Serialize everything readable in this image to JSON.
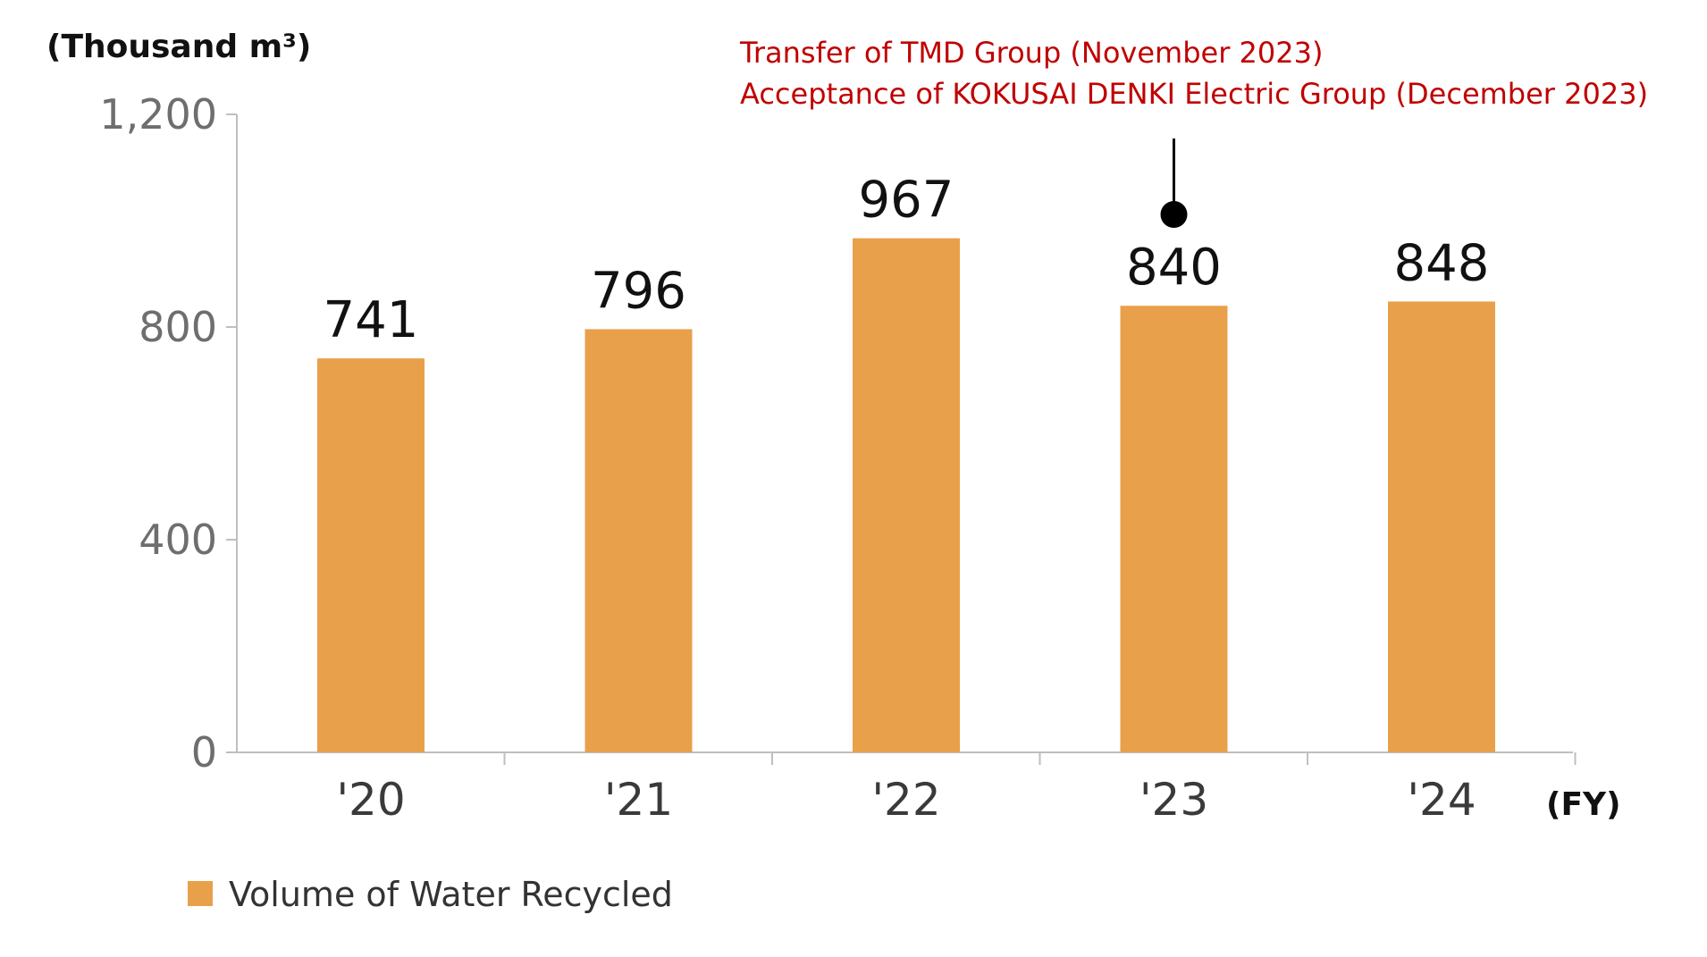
{
  "chart_data": {
    "type": "bar",
    "categories": [
      "'20",
      "'21",
      "'22",
      "'23",
      "'24"
    ],
    "series": [
      {
        "name": "Volume of Water Recycled",
        "values": [
          741,
          796,
          967,
          840,
          848
        ]
      }
    ],
    "ylabel": "(Thousand m³)",
    "xlabel": "(FY)",
    "ylim": [
      0,
      1200
    ],
    "yticks": [
      0,
      400,
      800,
      1200
    ],
    "ytick_labels": [
      "0",
      "400",
      "800",
      "1,200"
    ],
    "bar_color": "#e9a04a",
    "annotation": {
      "category": "'23",
      "lines": [
        "Transfer of TMD Group (November 2023)",
        "Acceptance of KOKUSAI DENKI Electric Group (December 2023)"
      ],
      "color": "#c00000"
    },
    "legend": {
      "position": "bottom-left"
    },
    "grid": false
  }
}
